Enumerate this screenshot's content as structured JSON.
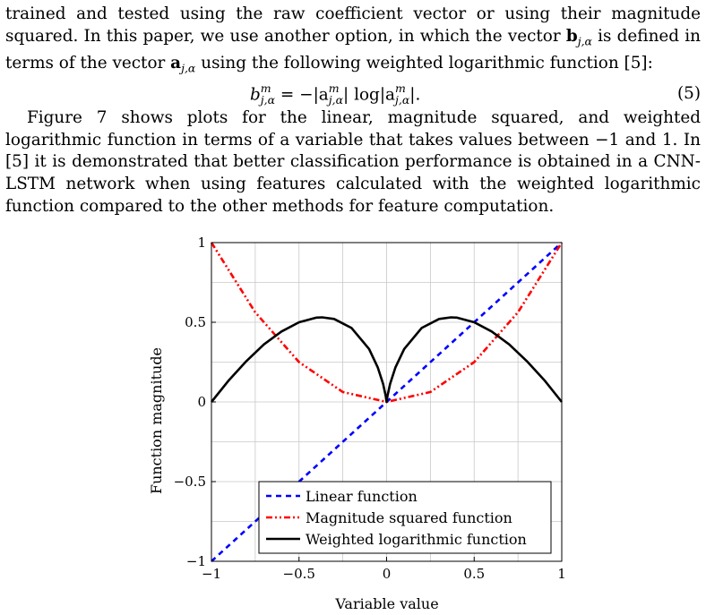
{
  "paragraph1": {
    "pre_a": "trained and tested using the raw coefficient vector or using their magnitude squared. In this paper, we use another option, in which the vector ",
    "vec_b": "b",
    "sub_b": "j,α",
    "mid": " is defined in terms of the vector ",
    "vec_a": "a",
    "sub_a": "j,α",
    "post": " using the following weighted logarithmic function [5]:"
  },
  "equation": {
    "lhs_var": "b",
    "lhs_sup": "m",
    "lhs_sub": "j,α",
    "body": " = −|a",
    "a_sup": "m",
    "a_sub": "j,α",
    "mid": "| log|a",
    "a2_sup": "m",
    "a2_sub": "j,α",
    "tail": "|.",
    "number": "(5)"
  },
  "paragraph2": "Figure 7 shows plots for the linear, magnitude squared, and weighted logarithmic function in terms of a variable that takes values between −1 and 1. In [5] it is demonstrated that better classification performance is obtained in a CNN-LSTM network when using features calculated with the weighted logarithmic function compared to the other methods for feature computation.",
  "chart_data": {
    "type": "line",
    "xlabel": "Variable value",
    "ylabel": "Function magnitude",
    "xlim": [
      -1,
      1
    ],
    "ylim": [
      -1,
      1
    ],
    "x_ticks": [
      -1,
      -0.5,
      0,
      0.5,
      1
    ],
    "x_tick_labels": [
      "−1",
      "−0.5",
      "0",
      "0.5",
      "1"
    ],
    "y_ticks": [
      -1,
      -0.5,
      0,
      0.5,
      1
    ],
    "y_tick_labels": [
      "−1",
      "−0.5",
      "0",
      "0.5",
      "1"
    ],
    "grid": true,
    "legend_position": "bottom-right",
    "series": [
      {
        "name": "Linear function",
        "color": "#0000ff",
        "dash": "dashed",
        "x": [
          -1,
          -0.5,
          0,
          0.5,
          1
        ],
        "y": [
          -1,
          -0.5,
          0,
          0.5,
          1
        ]
      },
      {
        "name": "Magnitude squared function",
        "color": "#ff0000",
        "dash": "dash-dot-dot",
        "x": [
          -1,
          -0.75,
          -0.5,
          -0.25,
          0,
          0.25,
          0.5,
          0.75,
          1
        ],
        "y": [
          1,
          0.5625,
          0.25,
          0.0625,
          0,
          0.0625,
          0.25,
          0.5625,
          1
        ]
      },
      {
        "name": "Weighted logarithmic function",
        "color": "#000000",
        "dash": "solid",
        "x": [
          -1,
          -0.9,
          -0.8,
          -0.7,
          -0.6,
          -0.5,
          -0.4,
          -0.3678,
          -0.3,
          -0.2,
          -0.1,
          -0.05,
          -0.02,
          -0.005,
          0,
          0.005,
          0.02,
          0.05,
          0.1,
          0.2,
          0.3,
          0.3678,
          0.4,
          0.5,
          0.6,
          0.7,
          0.8,
          0.9,
          1
        ],
        "y": [
          0,
          0.137,
          0.257,
          0.361,
          0.442,
          0.5,
          0.529,
          0.531,
          0.521,
          0.464,
          0.332,
          0.216,
          0.113,
          0.038,
          0,
          0.038,
          0.113,
          0.216,
          0.332,
          0.464,
          0.521,
          0.531,
          0.529,
          0.5,
          0.442,
          0.361,
          0.257,
          0.137,
          0
        ]
      }
    ]
  }
}
